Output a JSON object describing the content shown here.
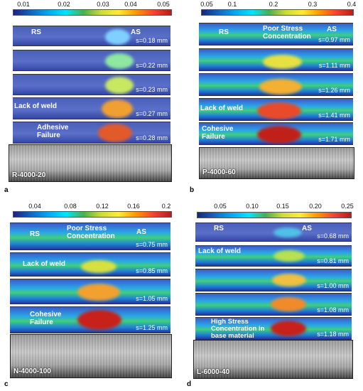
{
  "panels": {
    "a": {
      "letter": "a",
      "ticks": [
        "0.01",
        "0.02",
        "0.03",
        "0.04",
        "0.05"
      ],
      "rs": "RS",
      "as": "AS",
      "strips": [
        "s=0.18 mm",
        "s=0.22 mm",
        "s=0.23 mm",
        "s=0.27 mm",
        "s=0.28 mm"
      ],
      "note_lack": "Lack of weld",
      "note_fail": "Adhesive\nFailure",
      "specimen": "R-4000-20"
    },
    "b": {
      "letter": "b",
      "ticks": [
        "0.05",
        "0.1",
        "0.2",
        "0.3",
        "0.4"
      ],
      "rs": "RS",
      "as": "AS",
      "note_poor": "Poor Stress\nConcentration",
      "strips": [
        "s=0.97 mm",
        "s=1.11 mm",
        "s=1.26 mm",
        "s=1.41 mm",
        "s=1.71 mm"
      ],
      "note_lack": "Lack of weld",
      "note_fail": "Cohesive\nFailure",
      "specimen": "P-4000-60"
    },
    "c": {
      "letter": "c",
      "ticks": [
        "0.04",
        "0.08",
        "0.12",
        "0.16",
        "0.2"
      ],
      "rs": "RS",
      "as": "AS",
      "note_poor": "Poor Stress\nConcentration",
      "strips": [
        "s=0.75 mm",
        "s=0.85 mm",
        "s=1.05 mm",
        "s=1.25 mm"
      ],
      "note_lack": "Lack of weld",
      "note_fail": "Cohesive\nFailure",
      "specimen": "N-4000-100"
    },
    "d": {
      "letter": "d",
      "ticks": [
        "0.05",
        "0.10",
        "0.15",
        "0.20",
        "0.25"
      ],
      "rs": "RS",
      "as": "AS",
      "strips": [
        "s=0.68 mm",
        "s=0.81 mm",
        "s=1.00 mm",
        "s=1.08 mm",
        "s=1.18 mm"
      ],
      "note_lack": "Lack of weld",
      "note_fail": "High Stress\nConcentration in\nbase material",
      "specimen": "L-6000-40"
    }
  }
}
